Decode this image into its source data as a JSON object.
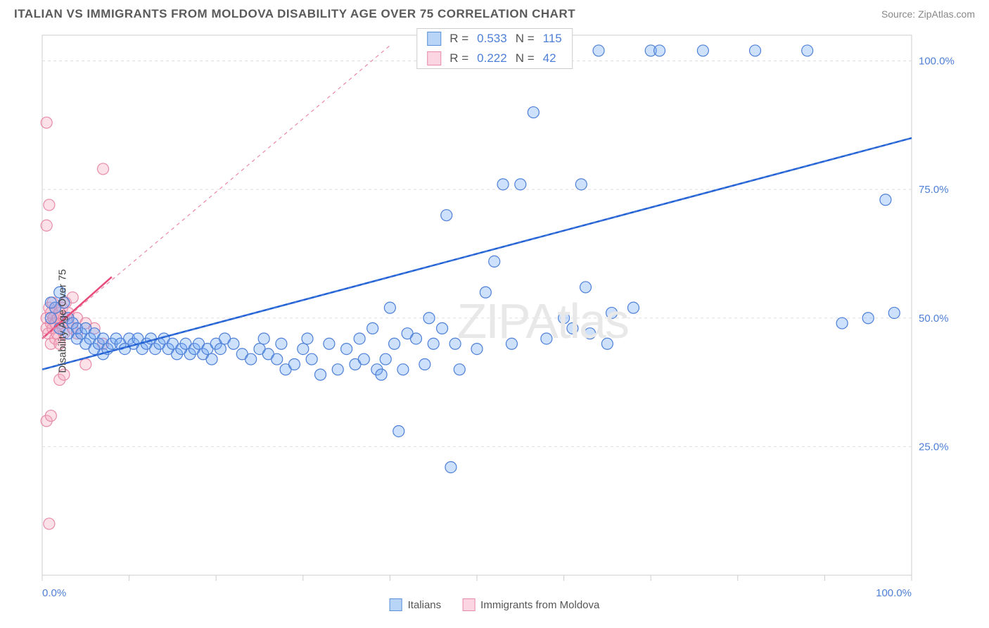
{
  "header": {
    "title": "ITALIAN VS IMMIGRANTS FROM MOLDOVA DISABILITY AGE OVER 75 CORRELATION CHART",
    "source": "Source: ZipAtlas.com"
  },
  "watermark": "ZIPAtlas",
  "chart": {
    "type": "scatter",
    "background_color": "#ffffff",
    "grid_color": "#dddddd",
    "axis_border_color": "#cccccc",
    "tick_label_color": "#4d7fd6",
    "y_axis_label": "Disability Age Over 75",
    "xlim": [
      0,
      100
    ],
    "ylim": [
      0,
      105
    ],
    "x_ticks": [
      0,
      10,
      20,
      30,
      40,
      50,
      60,
      70,
      80,
      90,
      100
    ],
    "x_tick_labels": {
      "0": "0.0%",
      "100": "100.0%"
    },
    "y_gridlines": [
      25,
      50,
      75,
      100
    ],
    "y_gridline_labels": [
      "25.0%",
      "50.0%",
      "75.0%",
      "100.0%"
    ],
    "marker_radius": 8,
    "series": [
      {
        "name": "Italians",
        "color_fill": "#6fa8f5",
        "color_stroke": "#4d7fd6",
        "swatch_fill": "#b8d4f7",
        "swatch_border": "#5a8fd8",
        "R": "0.533",
        "N": "115",
        "trend": {
          "x1": 0,
          "y1": 40,
          "x2": 100,
          "y2": 85,
          "color": "#1e5fd6"
        },
        "trend_dash": {
          "x1": 0,
          "y1": 40,
          "x2": 100,
          "y2": 85
        },
        "points": [
          [
            1,
            50
          ],
          [
            1.5,
            52
          ],
          [
            2,
            55
          ],
          [
            2,
            48
          ],
          [
            2.5,
            53
          ],
          [
            3,
            50
          ],
          [
            3,
            47
          ],
          [
            3.5,
            49
          ],
          [
            4,
            46
          ],
          [
            4,
            48
          ],
          [
            4.5,
            47
          ],
          [
            5,
            48
          ],
          [
            5,
            45
          ],
          [
            5.5,
            46
          ],
          [
            6,
            47
          ],
          [
            6,
            44
          ],
          [
            6.5,
            45
          ],
          [
            7,
            46
          ],
          [
            7,
            43
          ],
          [
            7.5,
            44
          ],
          [
            8,
            45
          ],
          [
            8.5,
            46
          ],
          [
            9,
            45
          ],
          [
            9.5,
            44
          ],
          [
            10,
            46
          ],
          [
            10.5,
            45
          ],
          [
            11,
            46
          ],
          [
            11.5,
            44
          ],
          [
            12,
            45
          ],
          [
            12.5,
            46
          ],
          [
            13,
            44
          ],
          [
            13.5,
            45
          ],
          [
            14,
            46
          ],
          [
            14.5,
            44
          ],
          [
            15,
            45
          ],
          [
            15.5,
            43
          ],
          [
            16,
            44
          ],
          [
            16.5,
            45
          ],
          [
            17,
            43
          ],
          [
            17.5,
            44
          ],
          [
            18,
            45
          ],
          [
            18.5,
            43
          ],
          [
            19,
            44
          ],
          [
            19.5,
            42
          ],
          [
            20,
            45
          ],
          [
            20.5,
            44
          ],
          [
            21,
            46
          ],
          [
            22,
            45
          ],
          [
            23,
            43
          ],
          [
            24,
            42
          ],
          [
            25,
            44
          ],
          [
            25.5,
            46
          ],
          [
            26,
            43
          ],
          [
            27,
            42
          ],
          [
            27.5,
            45
          ],
          [
            28,
            40
          ],
          [
            29,
            41
          ],
          [
            30,
            44
          ],
          [
            30.5,
            46
          ],
          [
            31,
            42
          ],
          [
            32,
            39
          ],
          [
            33,
            45
          ],
          [
            34,
            40
          ],
          [
            35,
            44
          ],
          [
            36,
            41
          ],
          [
            36.5,
            46
          ],
          [
            37,
            42
          ],
          [
            38,
            48
          ],
          [
            38.5,
            40
          ],
          [
            39,
            39
          ],
          [
            39.5,
            42
          ],
          [
            40,
            52
          ],
          [
            40.5,
            45
          ],
          [
            41,
            28
          ],
          [
            41.5,
            40
          ],
          [
            42,
            47
          ],
          [
            43,
            46
          ],
          [
            44,
            41
          ],
          [
            44.5,
            50
          ],
          [
            45,
            45
          ],
          [
            46,
            48
          ],
          [
            46.5,
            70
          ],
          [
            47,
            21
          ],
          [
            47.5,
            45
          ],
          [
            48,
            40
          ],
          [
            49,
            102
          ],
          [
            50,
            44
          ],
          [
            51,
            55
          ],
          [
            52,
            61
          ],
          [
            52.5,
            102
          ],
          [
            53,
            76
          ],
          [
            54,
            45
          ],
          [
            55,
            76
          ],
          [
            56,
            102
          ],
          [
            56.5,
            90
          ],
          [
            58,
            46
          ],
          [
            60,
            50
          ],
          [
            61,
            48
          ],
          [
            62,
            76
          ],
          [
            62.5,
            56
          ],
          [
            63,
            47
          ],
          [
            64,
            102
          ],
          [
            65,
            45
          ],
          [
            65.5,
            51
          ],
          [
            68,
            52
          ],
          [
            70,
            102
          ],
          [
            71,
            102
          ],
          [
            76,
            102
          ],
          [
            82,
            102
          ],
          [
            88,
            102
          ],
          [
            92,
            49
          ],
          [
            95,
            50
          ],
          [
            97,
            73
          ],
          [
            98,
            51
          ],
          [
            1,
            53
          ]
        ]
      },
      {
        "name": "Immigrants from Moldova",
        "color_fill": "#f7a8c0",
        "color_stroke": "#e88aa8",
        "swatch_fill": "#fcd5e2",
        "swatch_border": "#e88aa8",
        "R": "0.222",
        "N": "42",
        "trend": {
          "x1": 0,
          "y1": 46,
          "x2": 8,
          "y2": 58,
          "color": "#e84a7a"
        },
        "trend_dash": {
          "x1": 0,
          "y1": 46,
          "x2": 40,
          "y2": 103
        },
        "points": [
          [
            0.5,
            48
          ],
          [
            0.5,
            50
          ],
          [
            0.7,
            47
          ],
          [
            0.8,
            52
          ],
          [
            1,
            49
          ],
          [
            1,
            51
          ],
          [
            1,
            45
          ],
          [
            1.2,
            53
          ],
          [
            1.2,
            48
          ],
          [
            1.3,
            50
          ],
          [
            1.5,
            46
          ],
          [
            1.5,
            49
          ],
          [
            1.5,
            52
          ],
          [
            1.7,
            47
          ],
          [
            1.8,
            50
          ],
          [
            2,
            48
          ],
          [
            2,
            51
          ],
          [
            2,
            45
          ],
          [
            2.2,
            49
          ],
          [
            2.3,
            52
          ],
          [
            2.5,
            50
          ],
          [
            2.5,
            47
          ],
          [
            2.7,
            53
          ],
          [
            3,
            49
          ],
          [
            3,
            51
          ],
          [
            3.5,
            48
          ],
          [
            3.5,
            54
          ],
          [
            4,
            50
          ],
          [
            4,
            47
          ],
          [
            5,
            49
          ],
          [
            5,
            41
          ],
          [
            6,
            48
          ],
          [
            7,
            45
          ],
          [
            2,
            38
          ],
          [
            2.5,
            39
          ],
          [
            0.5,
            30
          ],
          [
            1,
            31
          ],
          [
            0.8,
            10
          ],
          [
            0.5,
            68
          ],
          [
            0.8,
            72
          ],
          [
            7,
            79
          ],
          [
            0.5,
            88
          ]
        ]
      }
    ]
  },
  "legend": {
    "bottom": [
      {
        "label": "Italians"
      },
      {
        "label": "Immigrants from Moldova"
      }
    ]
  }
}
